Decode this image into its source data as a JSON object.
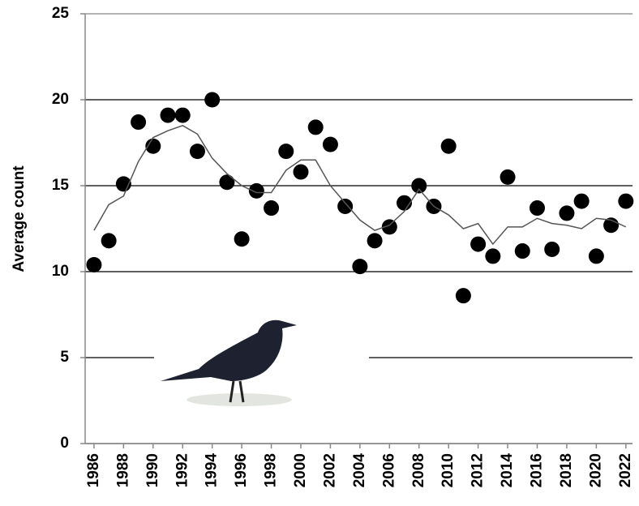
{
  "chart_data": {
    "type": "scatter",
    "y_label": "Average count",
    "x": [
      1986,
      1987,
      1988,
      1989,
      1990,
      1991,
      1992,
      1993,
      1994,
      1995,
      1996,
      1997,
      1998,
      1999,
      2000,
      2001,
      2002,
      2003,
      2004,
      2005,
      2006,
      2007,
      2008,
      2009,
      2010,
      2011,
      2012,
      2013,
      2014,
      2015,
      2016,
      2017,
      2018,
      2019,
      2020,
      2021,
      2022
    ],
    "series": [
      {
        "type": "scatter",
        "color": "#000000",
        "values": [
          10.4,
          11.8,
          15.1,
          18.7,
          17.3,
          19.1,
          19.1,
          17.0,
          20.0,
          15.2,
          11.9,
          14.7,
          13.7,
          17.0,
          15.8,
          18.4,
          17.4,
          13.8,
          10.3,
          11.8,
          12.6,
          14.0,
          15.0,
          13.8,
          17.3,
          8.6,
          11.6,
          10.9,
          15.5,
          11.2,
          13.7,
          11.3,
          13.4,
          14.1,
          10.9,
          12.7,
          14.1
        ]
      },
      {
        "type": "line",
        "color": "#555555",
        "values": [
          12.4,
          13.9,
          14.4,
          16.4,
          17.8,
          18.2,
          18.5,
          18.0,
          16.6,
          15.7,
          15.0,
          14.6,
          14.6,
          15.9,
          16.5,
          16.5,
          15.0,
          14.0,
          13.0,
          12.4,
          12.7,
          13.5,
          14.8,
          13.8,
          13.3,
          12.5,
          12.8,
          11.6,
          12.6,
          12.6,
          13.1,
          12.8,
          12.7,
          12.5,
          13.1,
          13.0,
          12.6
        ]
      }
    ],
    "xlim": [
      1985.4,
      2022.45
    ],
    "xticks": [
      1986,
      1988,
      1990,
      1992,
      1994,
      1996,
      1998,
      2000,
      2002,
      2004,
      2006,
      2008,
      2010,
      2012,
      2014,
      2016,
      2018,
      2020,
      2022
    ],
    "ylim": [
      0,
      25
    ],
    "yticks": [
      0,
      5,
      10,
      15,
      20,
      25
    ],
    "grid": true
  }
}
